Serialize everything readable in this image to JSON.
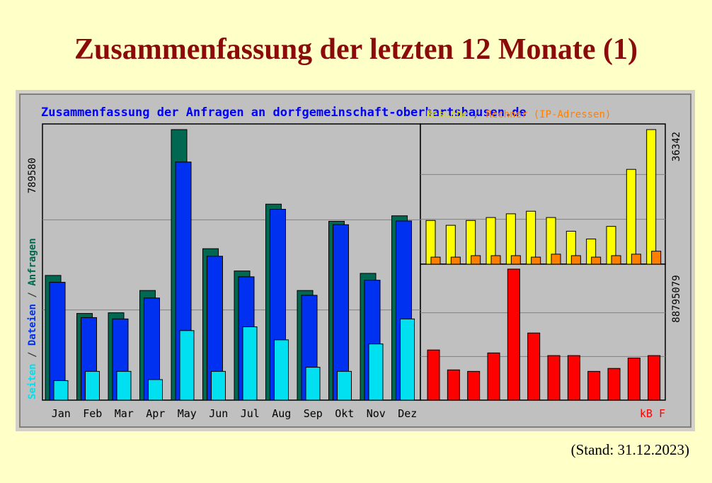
{
  "page": {
    "title": "Zusammenfassung der letzten 12 Monate (1)",
    "stand": "(Stand: 31.12.2023)"
  },
  "colors": {
    "anfragen": "#006850",
    "dateien": "#0030f0",
    "seiten": "#00e0f0",
    "besuche": "#ffff00",
    "rechner": "#ff8000",
    "kb": "#ff0000",
    "chart_bg": "#c0c0c0",
    "title_text": "#0000ff"
  },
  "chart_data": {
    "type": "bar",
    "title": "Zusammenfassung der Anfragen an dorfgemeinschaft-oberhartshausen.de",
    "categories": [
      "Jan",
      "Feb",
      "Mar",
      "Apr",
      "May",
      "Jun",
      "Jul",
      "Aug",
      "Sep",
      "Okt",
      "Nov",
      "Dez"
    ],
    "left_panel": {
      "ylabel_parts": [
        "Seiten",
        "/",
        "Dateien",
        "/",
        "Anfragen"
      ],
      "max_label": "789580",
      "ylim": [
        0,
        789580
      ],
      "grid": true,
      "series": [
        {
          "name": "Anfragen",
          "values": [
            364000,
            253000,
            255000,
            320000,
            789580,
            442000,
            377000,
            572000,
            320000,
            522000,
            370000,
            538000
          ]
        },
        {
          "name": "Dateien",
          "values": [
            344000,
            241000,
            237000,
            298000,
            695000,
            420000,
            360000,
            557000,
            306000,
            512000,
            350000,
            523000
          ]
        },
        {
          "name": "Seiten",
          "values": [
            57000,
            84000,
            84000,
            60000,
            203000,
            84000,
            214000,
            176000,
            96000,
            84000,
            164000,
            237000
          ]
        }
      ]
    },
    "right_top_panel": {
      "legend_parts": [
        "Besuche",
        "/",
        "Rechner (IP-Adressen)"
      ],
      "max_label": "36342",
      "ylim": [
        0,
        36342
      ],
      "grid": true,
      "series": [
        {
          "name": "Besuche",
          "values": [
            11800,
            10500,
            11800,
            12600,
            13600,
            14300,
            12600,
            8900,
            6800,
            10200,
            25600,
            36342
          ]
        },
        {
          "name": "Rechner (IP-Adressen)",
          "values": [
            1900,
            1900,
            2300,
            2300,
            2300,
            1900,
            2700,
            2300,
            1900,
            2300,
            2700,
            3500
          ]
        }
      ]
    },
    "right_bottom_panel": {
      "label_parts": [
        "kB",
        "F"
      ],
      "max_label": "88795079",
      "ylim": [
        0,
        88795079
      ],
      "grid": true,
      "series": [
        {
          "name": "kB F",
          "values": [
            34000000,
            20500000,
            19500000,
            32000000,
            88795079,
            45500000,
            30200000,
            30200000,
            19500000,
            21500000,
            28500000,
            30200000
          ]
        }
      ]
    }
  }
}
